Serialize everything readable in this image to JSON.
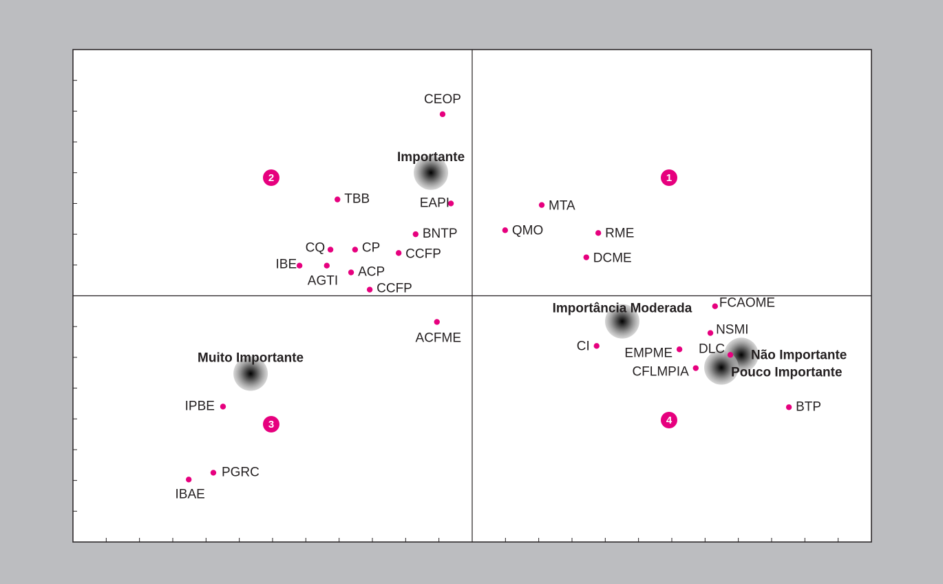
{
  "chart_data": {
    "type": "scatter",
    "xlim": [
      -1.2,
      1.2
    ],
    "ylim": [
      -0.8,
      0.8
    ],
    "xticks": [
      -1.2,
      -1.1,
      -1.0,
      -0.9,
      -0.8,
      -0.7,
      -0.6,
      -0.5,
      -0.4,
      -0.3,
      -0.2,
      -0.1,
      0,
      0.1,
      0.2,
      0.3,
      0.4,
      0.5,
      0.6,
      0.7,
      0.8,
      0.9,
      1.0,
      1.1,
      1.2
    ],
    "yticks": [
      -0.8,
      -0.7,
      -0.6,
      -0.5,
      -0.4,
      -0.3,
      -0.2,
      -0.1,
      0,
      0.1,
      0.2,
      0.3,
      0.4,
      0.5,
      0.6,
      0.7,
      0.8
    ],
    "point_color": "#e6007e",
    "points": [
      {
        "label": "CEOP",
        "x": -0.089,
        "y": 0.59
      },
      {
        "label": "TBB",
        "x": -0.405,
        "y": 0.313
      },
      {
        "label": "EAPI",
        "x": -0.064,
        "y": 0.3
      },
      {
        "label": "BNTP",
        "x": -0.17,
        "y": 0.2
      },
      {
        "label": "CQ",
        "x": -0.426,
        "y": 0.15
      },
      {
        "label": "CP",
        "x": -0.352,
        "y": 0.15
      },
      {
        "label": "CCFP",
        "x": -0.221,
        "y": 0.139
      },
      {
        "label": "IBE",
        "x": -0.519,
        "y": 0.098
      },
      {
        "label": "AGTI",
        "x": -0.437,
        "y": 0.098
      },
      {
        "label": "ACP",
        "x": -0.364,
        "y": 0.076
      },
      {
        "label": "CCFP",
        "x": -0.308,
        "y": 0.02
      },
      {
        "label": "ACFME",
        "x": -0.106,
        "y": -0.085
      },
      {
        "label": "IPBE",
        "x": -0.749,
        "y": -0.36
      },
      {
        "label": "PGRC",
        "x": -0.778,
        "y": -0.575
      },
      {
        "label": "IBAE",
        "x": -0.852,
        "y": -0.597
      },
      {
        "label": "MTA",
        "x": 0.209,
        "y": 0.295
      },
      {
        "label": "QMO",
        "x": 0.099,
        "y": 0.213
      },
      {
        "label": "RME",
        "x": 0.379,
        "y": 0.204
      },
      {
        "label": "DCME",
        "x": 0.343,
        "y": 0.125
      },
      {
        "label": "FCAOME",
        "x": 0.73,
        "y": -0.034
      },
      {
        "label": "NSMI",
        "x": 0.716,
        "y": -0.121
      },
      {
        "label": "CI",
        "x": 0.374,
        "y": -0.163
      },
      {
        "label": "EMPME",
        "x": 0.623,
        "y": -0.174
      },
      {
        "label": "DLC",
        "x": 0.776,
        "y": -0.192
      },
      {
        "label": "CFLMPIA",
        "x": 0.672,
        "y": -0.235
      },
      {
        "label": "BTP",
        "x": 0.952,
        "y": -0.362
      }
    ],
    "modalities": [
      {
        "label": "Importante",
        "x": -0.124,
        "y": 0.4
      },
      {
        "label": "Importância Moderada",
        "x": 0.451,
        "y": -0.083
      },
      {
        "label": "Muito Importante",
        "x": -0.666,
        "y": -0.253
      },
      {
        "label": "Não Importante",
        "x": 0.809,
        "y": -0.192
      },
      {
        "label": "Pouco Importante",
        "x": 0.749,
        "y": -0.233
      }
    ],
    "quadrant_labels": [
      "1",
      "2",
      "3",
      "4"
    ]
  }
}
